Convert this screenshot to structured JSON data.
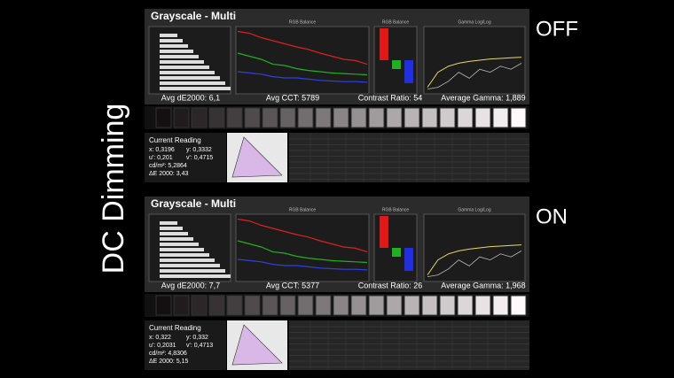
{
  "title": "DC Dimming",
  "panels": [
    {
      "state": "OFF",
      "heading": "Grayscale - Multi",
      "chart_titles": [
        "RGB Balance",
        "RGB Balance",
        "Gamma Log/Log"
      ],
      "stats": [
        "Avg dE2000: 6,1",
        "Avg CCT: 5789",
        "Contrast Ratio: 54",
        "Average Gamma: 1,889"
      ],
      "reading": {
        "heading": "Current Reading",
        "rows": [
          [
            "x: 0,3196",
            "y: 0,3332"
          ],
          [
            "u': 0,201",
            "v': 0,4715"
          ],
          [
            "cd/m²: 5,2864"
          ],
          [
            "ΔE 2000: 3,43"
          ]
        ]
      }
    },
    {
      "state": "ON",
      "heading": "Grayscale - Multi",
      "chart_titles": [
        "RGB Balance",
        "RGB Balance",
        "Gamma Log/Log"
      ],
      "stats": [
        "Avg dE2000: 7,7",
        "Avg CCT: 5377",
        "Contrast Ratio: 26",
        "Average Gamma: 1,968"
      ],
      "reading": {
        "heading": "Current Reading",
        "rows": [
          [
            "x: 0,322",
            "y: 0,332"
          ],
          [
            "u': 0,2031",
            "v': 0,4713"
          ],
          [
            "cd/m²: 4,8306"
          ],
          [
            "ΔE 2000: 5,15"
          ]
        ]
      }
    }
  ]
}
